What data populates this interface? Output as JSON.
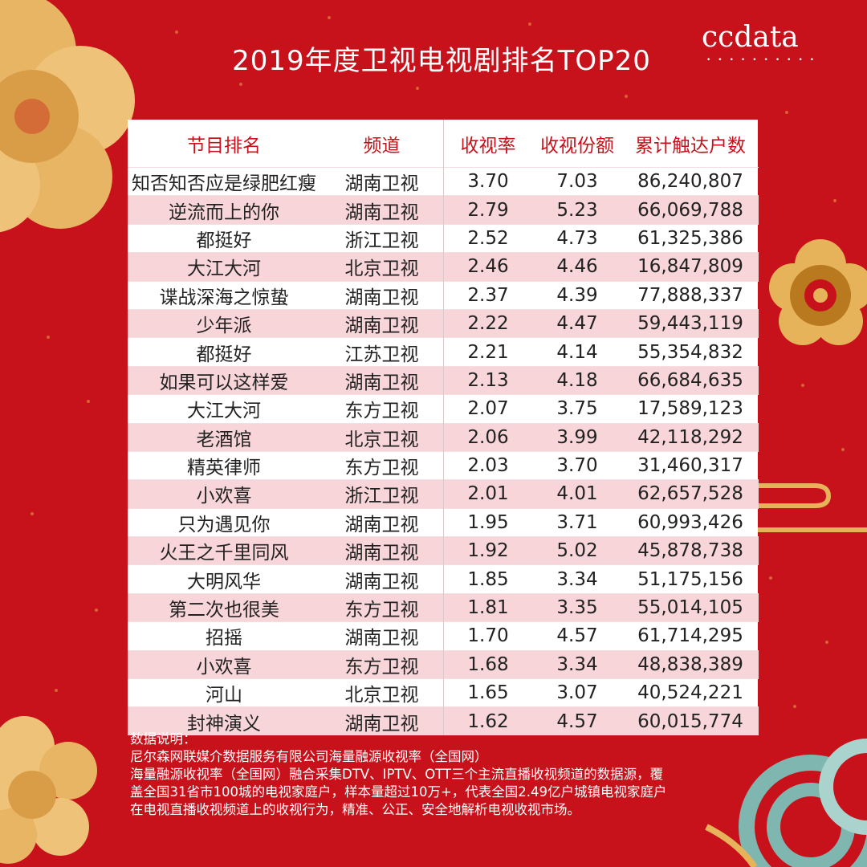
{
  "page": {
    "title": "2019年度卫视电视剧排名TOP20",
    "brand": "ccdata",
    "colors": {
      "background": "#c8121b",
      "header_text": "#c8121b",
      "row_alt": "#f7d5d9",
      "gold": "#e6b35a"
    }
  },
  "chart_data": {
    "type": "table",
    "title": "2019年度卫视电视剧排名TOP20",
    "columns": [
      "节目排名",
      "频道",
      "收视率",
      "收视份额",
      "累计触达户数"
    ],
    "rows": [
      [
        "知否知否应是绿肥红瘦",
        "湖南卫视",
        "3.70",
        "7.03",
        "86,240,807"
      ],
      [
        "逆流而上的你",
        "湖南卫视",
        "2.79",
        "5.23",
        "66,069,788"
      ],
      [
        "都挺好",
        "浙江卫视",
        "2.52",
        "4.73",
        "61,325,386"
      ],
      [
        "大江大河",
        "北京卫视",
        "2.46",
        "4.46",
        "16,847,809"
      ],
      [
        "谍战深海之惊蛰",
        "湖南卫视",
        "2.37",
        "4.39",
        "77,888,337"
      ],
      [
        "少年派",
        "湖南卫视",
        "2.22",
        "4.47",
        "59,443,119"
      ],
      [
        "都挺好",
        "江苏卫视",
        "2.21",
        "4.14",
        "55,354,832"
      ],
      [
        "如果可以这样爱",
        "湖南卫视",
        "2.13",
        "4.18",
        "66,684,635"
      ],
      [
        "大江大河",
        "东方卫视",
        "2.07",
        "3.75",
        "17,589,123"
      ],
      [
        "老酒馆",
        "北京卫视",
        "2.06",
        "3.99",
        "42,118,292"
      ],
      [
        "精英律师",
        "东方卫视",
        "2.03",
        "3.70",
        "31,460,317"
      ],
      [
        "小欢喜",
        "浙江卫视",
        "2.01",
        "4.01",
        "62,657,528"
      ],
      [
        "只为遇见你",
        "湖南卫视",
        "1.95",
        "3.71",
        "60,993,426"
      ],
      [
        "火王之千里同风",
        "湖南卫视",
        "1.92",
        "5.02",
        "45,878,738"
      ],
      [
        "大明风华",
        "湖南卫视",
        "1.85",
        "3.34",
        "51,175,156"
      ],
      [
        "第二次也很美",
        "东方卫视",
        "1.81",
        "3.35",
        "55,014,105"
      ],
      [
        "招摇",
        "湖南卫视",
        "1.70",
        "4.57",
        "61,714,295"
      ],
      [
        "小欢喜",
        "东方卫视",
        "1.68",
        "3.34",
        "48,838,389"
      ],
      [
        "河山",
        "北京卫视",
        "1.65",
        "3.07",
        "40,524,221"
      ],
      [
        "封神演义",
        "湖南卫视",
        "1.62",
        "4.57",
        "60,015,774"
      ]
    ]
  },
  "notes": {
    "heading": "数据说明：",
    "lines": [
      "尼尔森网联媒介数据服务有限公司海量融源收视率（全国网）",
      "海量融源收视率（全国网）融合采集DTV、IPTV、OTT三个主流直播收视频道的数据源，覆",
      "盖全国31省市100城的电视家庭户，样本量超过10万+，代表全国2.49亿户城镇电视家庭户",
      "在电视直播收视频道上的收视行为，精准、公正、安全地解析电视收视市场。"
    ]
  }
}
